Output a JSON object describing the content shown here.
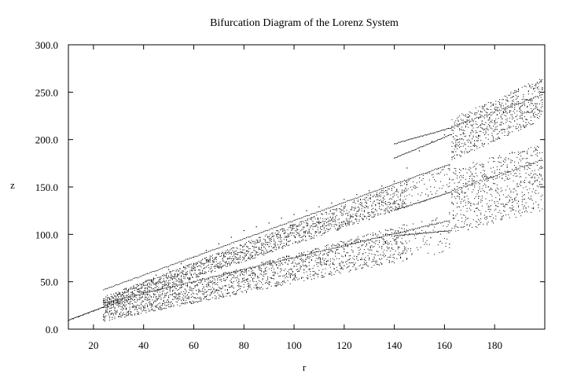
{
  "chart_data": {
    "type": "scatter",
    "title": "Bifurcation Diagram of the Lorenz System",
    "xlabel": "r",
    "ylabel": "z",
    "xlim": [
      10,
      200
    ],
    "ylim": [
      0,
      300
    ],
    "xticks": [
      20,
      40,
      60,
      80,
      100,
      120,
      140,
      160,
      180
    ],
    "xtick_labels": [
      "20",
      "40",
      "60",
      "80",
      "100",
      "120",
      "140",
      "160",
      "180"
    ],
    "yticks": [
      0,
      50,
      100,
      150,
      200,
      250,
      300
    ],
    "ytick_labels": [
      "0.0",
      "50.0",
      "100.0",
      "150.0",
      "200.0",
      "250.0",
      "300.0"
    ],
    "grid": false,
    "marker_color": "#000000",
    "series": [
      {
        "x": [
          10,
          12,
          14,
          16,
          18,
          20,
          22,
          24,
          26,
          28,
          30,
          32,
          34,
          36,
          38,
          40,
          45,
          50,
          55,
          60,
          65,
          70,
          75,
          80,
          85,
          90,
          95,
          100,
          105,
          110,
          115,
          120,
          125,
          130,
          135,
          140,
          145,
          150,
          155,
          160,
          163,
          165,
          170,
          175,
          180,
          185,
          190,
          195,
          199
        ],
        "y": [
          9,
          11,
          13,
          15,
          17,
          19,
          21,
          23,
          28,
          33,
          37,
          38,
          41,
          43,
          46,
          49,
          57,
          63,
          69,
          76,
          83,
          90,
          97,
          104,
          108,
          112,
          117,
          121,
          125,
          129,
          133,
          137,
          142,
          146,
          151,
          156,
          170,
          188,
          198,
          205,
          210,
          200,
          204,
          212,
          220,
          228,
          233,
          238,
          242
        ]
      }
    ],
    "notes": []
  }
}
